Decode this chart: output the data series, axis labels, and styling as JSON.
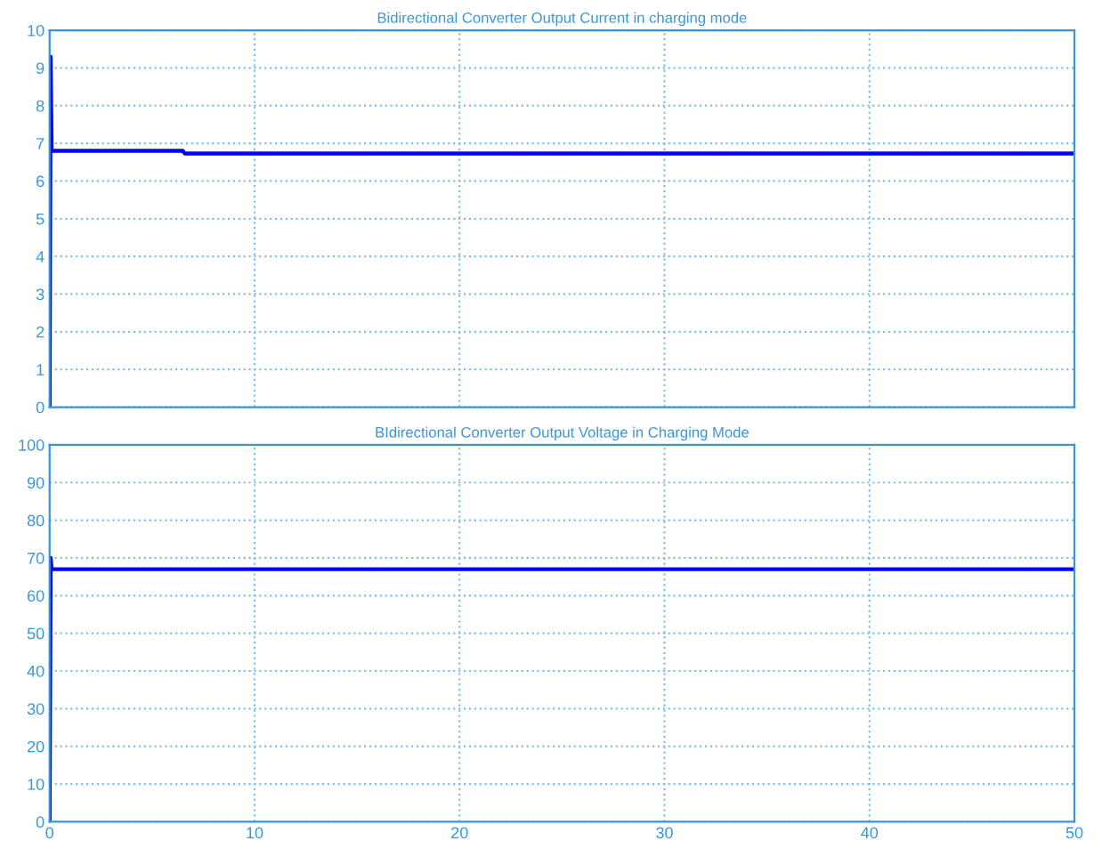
{
  "chart_data": [
    {
      "type": "line",
      "title": "Bidirectional Converter Output Current in charging mode",
      "x": [
        0,
        0.05,
        0.1,
        6.5,
        6.6,
        50
      ],
      "series": [
        {
          "color": "#0000ff",
          "values": [
            0,
            9.3,
            6.8,
            6.8,
            6.73,
            6.73
          ]
        }
      ],
      "xlim": [
        0,
        50
      ],
      "xticks": [
        0,
        10,
        20,
        30,
        40,
        50
      ],
      "ylim": [
        0,
        10
      ],
      "yticks": [
        0,
        1,
        2,
        3,
        4,
        5,
        6,
        7,
        8,
        9,
        10
      ],
      "grid": true,
      "tick_labels": "y",
      "line_style": "solid",
      "marker": "none"
    },
    {
      "type": "line",
      "title": "BIdirectional Converter Output Voltage in Charging Mode",
      "x": [
        0,
        0.05,
        0.1,
        50
      ],
      "series": [
        {
          "color": "#0000ff",
          "values": [
            0,
            70,
            67,
            67
          ]
        }
      ],
      "xlim": [
        0,
        50
      ],
      "xticks": [
        0,
        10,
        20,
        30,
        40,
        50
      ],
      "ylim": [
        0,
        100
      ],
      "yticks": [
        0,
        10,
        20,
        30,
        40,
        50,
        60,
        70,
        80,
        90,
        100
      ],
      "grid": true,
      "line_style": "solid",
      "marker": "none"
    }
  ]
}
